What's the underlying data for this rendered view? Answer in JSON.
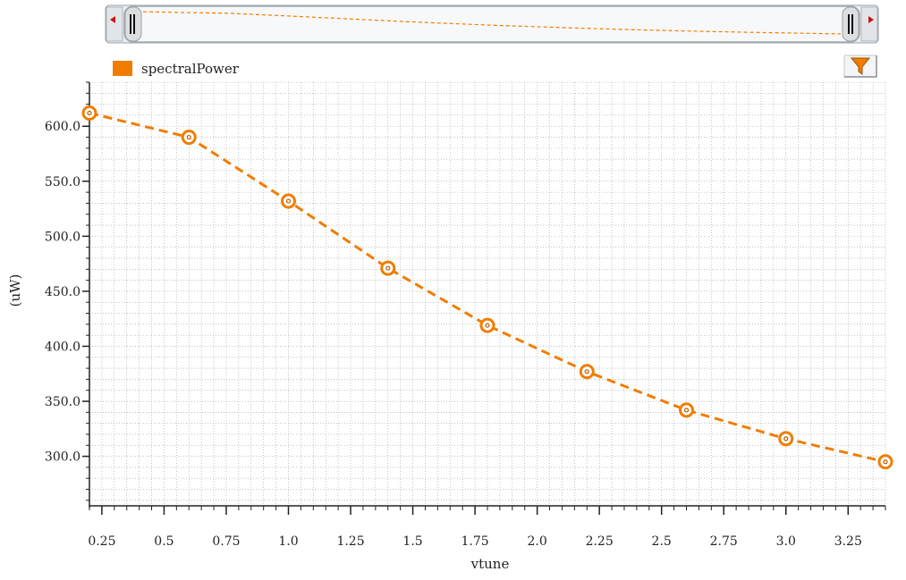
{
  "colors": {
    "series": "#f07d00",
    "grid": "#9aa0a6",
    "axis": "#222222",
    "scroll_track": "#e9ecef",
    "scroll_arrow": "#cc1111"
  },
  "overview": {
    "left_arrow_icon": "triangle-left-icon",
    "right_arrow_icon": "triangle-right-icon"
  },
  "toolbar": {
    "filter_icon": "funnel-icon"
  },
  "chart_data": {
    "type": "line",
    "ylabel": "(uW)",
    "xlabel": "vtune",
    "xlim": [
      0.2,
      3.4
    ],
    "ylim": [
      255,
      640
    ],
    "grid": true,
    "legend_position": "top-left",
    "x_ticks": [
      0.25,
      0.5,
      0.75,
      1.0,
      1.25,
      1.5,
      1.75,
      2.0,
      2.25,
      2.5,
      2.75,
      3.0,
      3.25
    ],
    "x_tick_labels": [
      "0.25",
      "0.5",
      "0.75",
      "1.0",
      "1.25",
      "1.5",
      "1.75",
      "2.0",
      "2.25",
      "2.5",
      "2.75",
      "3.0",
      "3.25"
    ],
    "y_ticks": [
      300,
      350,
      400,
      450,
      500,
      550,
      600
    ],
    "y_tick_labels": [
      "300.0",
      "350.0",
      "400.0",
      "450.0",
      "500.0",
      "550.0",
      "600.0"
    ],
    "series": [
      {
        "name": "spectralPower",
        "x": [
          0.2,
          0.6,
          1.0,
          1.4,
          1.8,
          2.2,
          2.6,
          3.0,
          3.4
        ],
        "y": [
          612,
          590,
          532,
          471,
          419,
          377,
          342,
          316,
          295
        ]
      }
    ]
  }
}
